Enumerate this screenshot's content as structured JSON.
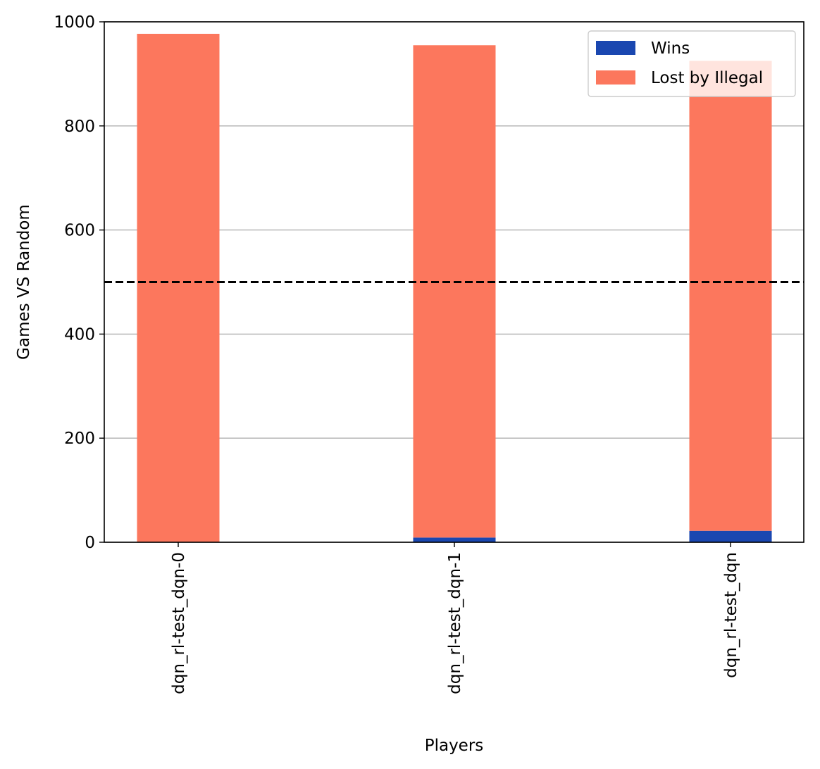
{
  "chart_data": {
    "type": "bar",
    "stacked": true,
    "title": "",
    "xlabel": "Players",
    "ylabel": "Games VS Random",
    "categories": [
      "dqn_rl-test_dqn-0",
      "dqn_rl-test_dqn-1",
      "dqn_rl-test_dqn"
    ],
    "series": [
      {
        "name": "Wins",
        "values": [
          0,
          9,
          22
        ],
        "color": "#1a47b0"
      },
      {
        "name": "Lost by Illegal",
        "values": [
          977,
          946,
          903
        ],
        "color": "#fc775d"
      }
    ],
    "ylim": [
      0,
      1000
    ],
    "yticks": [
      0,
      200,
      400,
      600,
      800,
      1000
    ],
    "reference_line": {
      "y": 500,
      "style": "dashed",
      "color": "#000000"
    },
    "grid": "y",
    "legend_position": "top-right",
    "xtick_rotation": "vertical"
  }
}
